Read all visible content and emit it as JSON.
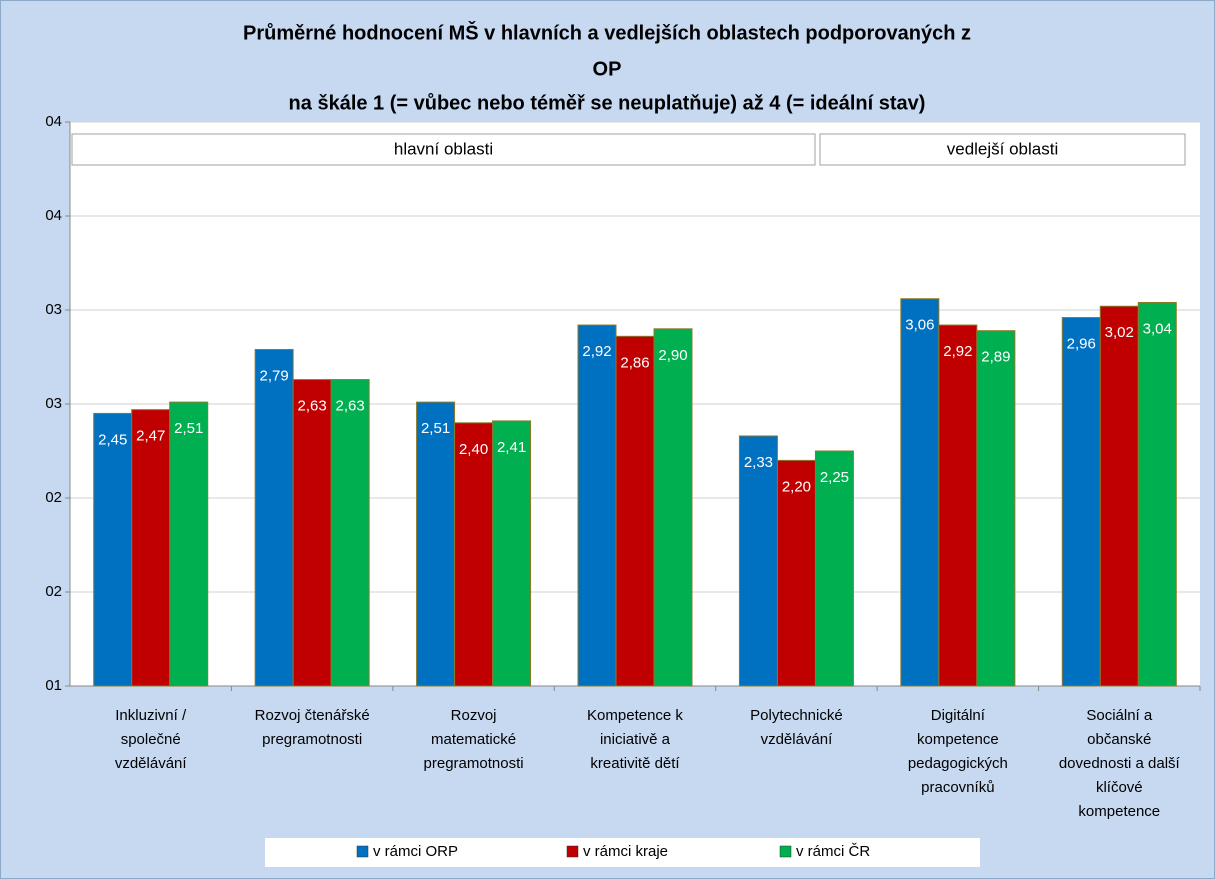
{
  "chart_data": {
    "type": "bar",
    "title": [
      "Průměrné hodnocení MŠ v hlavních a vedlejších oblastech podporovaných z",
      "OP"
    ],
    "subtitle": "na škále 1 (= vůbec nebo téměř se neuplatňuje) až 4 (= ideální stav)",
    "annotations": [
      "hlavní oblasti",
      "vedlejší oblasti"
    ],
    "categories": [
      "Inkluzivní /\nspolečné\nvzdělávání",
      "Rozvoj čtenářské\npregramotnosti",
      "Rozvoj\nmatematické\npregramotnosti",
      "Kompetence k\niniciativě a\nkreativitě dětí",
      "Polytechnické\nvzdělávání",
      "Digitální\nkompetence\npedagogických\npracovníků",
      "Sociální a\nobčanské\ndovednosti a další\nklíčové\nkompetence"
    ],
    "series": [
      {
        "name": "v rámci ORP",
        "color": "#0070c0",
        "values": [
          2.45,
          2.79,
          2.51,
          2.92,
          2.33,
          3.06,
          2.96
        ],
        "value_labels": [
          "2,45",
          "2,79",
          "2,51",
          "2,92",
          "2,33",
          "3,06",
          "2,96"
        ]
      },
      {
        "name": "v rámci kraje",
        "color": "#c00000",
        "values": [
          2.47,
          2.63,
          2.4,
          2.86,
          2.2,
          2.92,
          3.02
        ],
        "value_labels": [
          "2,47",
          "2,63",
          "2,40",
          "2,86",
          "2,20",
          "2,92",
          "3,02"
        ]
      },
      {
        "name": "v rámci ČR",
        "color": "#00b050",
        "values": [
          2.51,
          2.63,
          2.41,
          2.9,
          2.25,
          2.89,
          3.04
        ],
        "value_labels": [
          "2,51",
          "2,63",
          "2,41",
          "2,90",
          "2,25",
          "2,89",
          "3,04"
        ]
      }
    ],
    "ylim": [
      1,
      4
    ],
    "yticks": [
      {
        "value": 1,
        "label": "01"
      },
      {
        "value": 1.5,
        "label": "02"
      },
      {
        "value": 2,
        "label": "02"
      },
      {
        "value": 2.5,
        "label": "03"
      },
      {
        "value": 3,
        "label": "03"
      },
      {
        "value": 3.5,
        "label": "04"
      },
      {
        "value": 4,
        "label": "04"
      }
    ],
    "grid": true,
    "legend": "bottom"
  }
}
